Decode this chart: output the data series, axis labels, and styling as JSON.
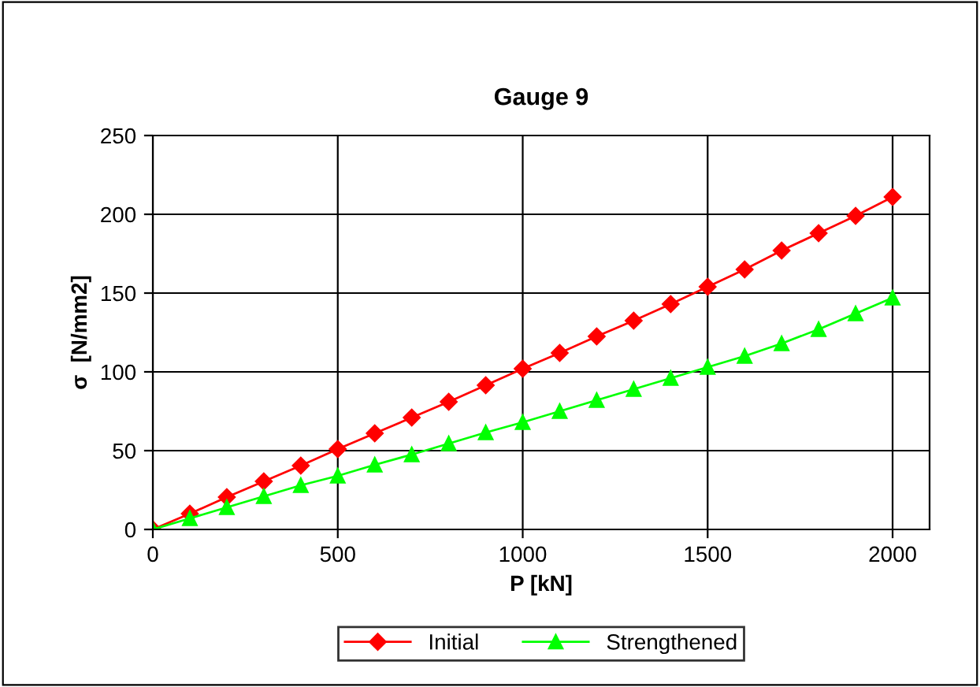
{
  "chart_data": {
    "type": "line",
    "title": "Gauge 9",
    "xlabel": "P [kN]",
    "ylabel": "σ  [N/mm2]",
    "x": [
      0,
      100,
      200,
      300,
      400,
      500,
      600,
      700,
      800,
      900,
      1000,
      1100,
      1200,
      1300,
      1400,
      1500,
      1600,
      1700,
      1800,
      1900,
      2000
    ],
    "series": [
      {
        "name": "Initial",
        "color": "#ff0000",
        "marker": "diamond",
        "values": [
          0,
          10,
          20.5,
          30.5,
          40.5,
          51,
          61,
          71,
          81,
          91.5,
          102,
          112,
          122.5,
          132.5,
          143,
          154,
          165,
          177,
          188,
          199,
          211
        ]
      },
      {
        "name": "Strengthened",
        "color": "#00ff00",
        "marker": "triangle",
        "values": [
          0,
          7,
          14,
          21,
          28,
          34,
          41,
          47.5,
          54.5,
          61.5,
          68,
          75,
          82,
          89,
          96,
          103,
          110,
          118,
          127,
          137,
          147
        ]
      }
    ],
    "xlim": [
      0,
      2100
    ],
    "xticks": [
      0,
      500,
      1000,
      1500,
      2000
    ],
    "ylim": [
      0,
      250
    ],
    "yticks": [
      0,
      50,
      100,
      150,
      200,
      250
    ],
    "grid": true,
    "legend": "bottom",
    "line_style": "solid"
  }
}
